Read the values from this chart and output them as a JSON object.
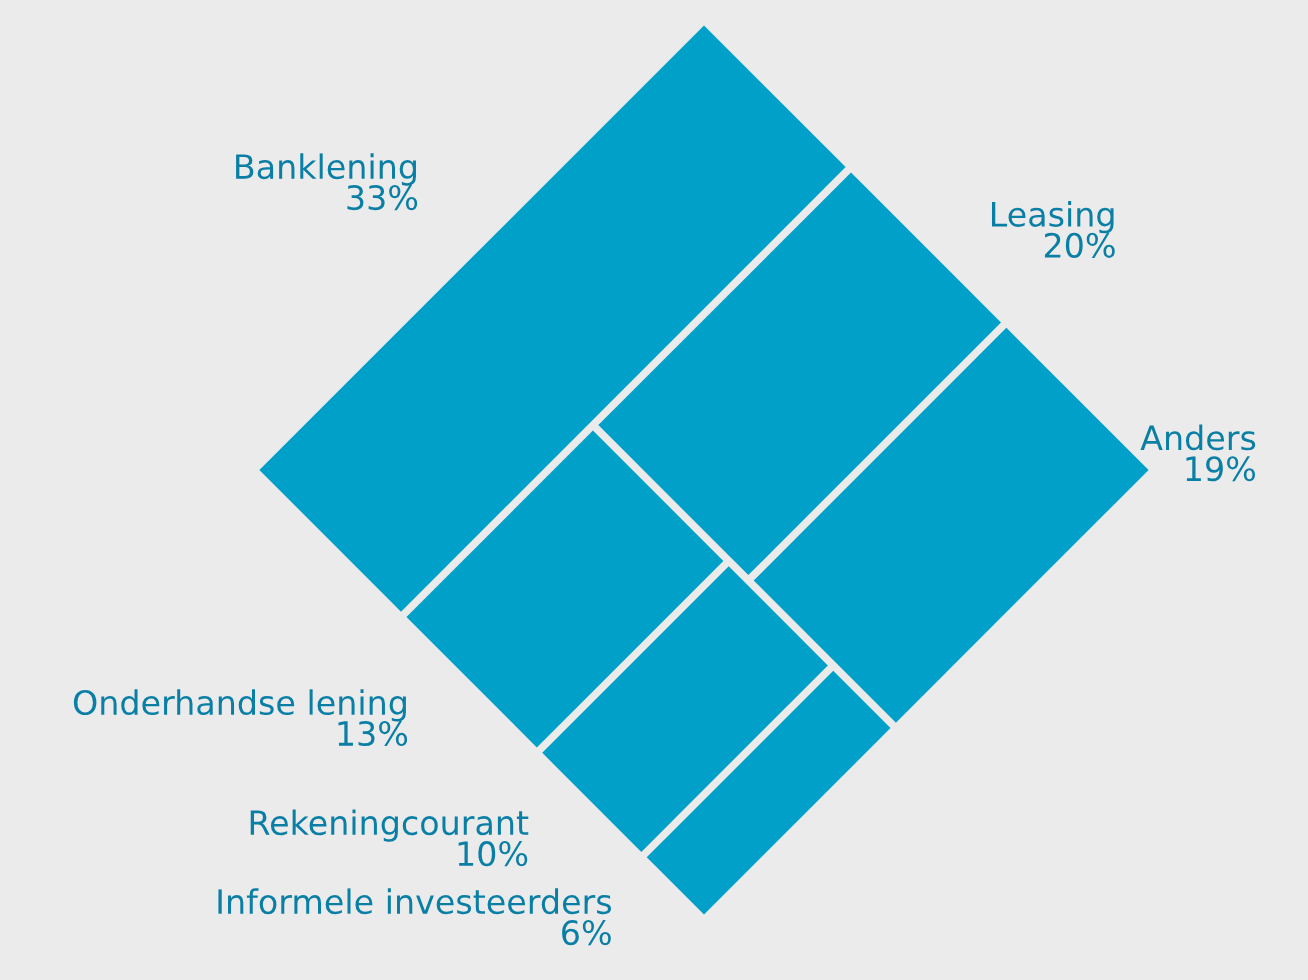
{
  "chart_data": {
    "type": "other",
    "categories": [
      "Banklening",
      "Leasing",
      "Anders",
      "Onderhandse lening",
      "Rekeningcourant",
      "Informele investeerders"
    ],
    "values": [
      33,
      20,
      19,
      13,
      10,
      6
    ],
    "value_labels": [
      "33%",
      "20%",
      "19%",
      "13%",
      "10%",
      "6%"
    ],
    "color": "#00a0c8"
  }
}
